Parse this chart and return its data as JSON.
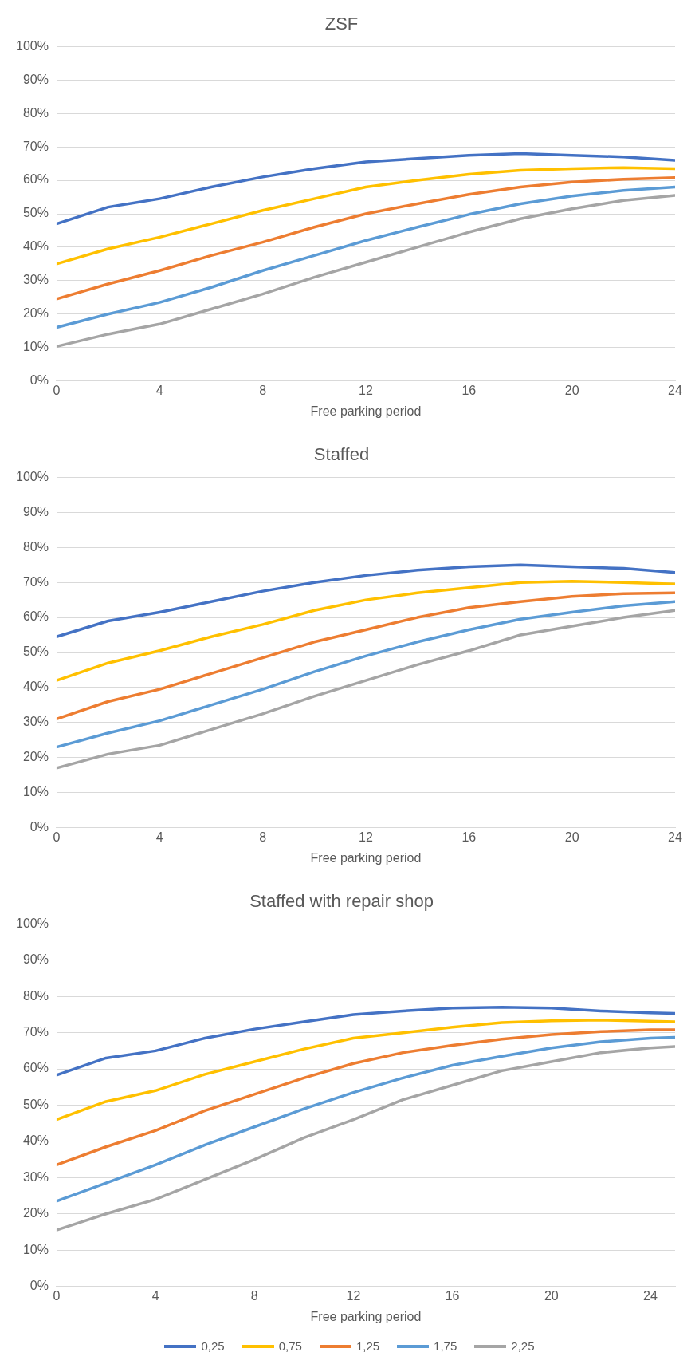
{
  "chart_data": [
    {
      "type": "line",
      "title": "ZSF",
      "xlabel": "Free parking period",
      "x": [
        0,
        2,
        4,
        6,
        8,
        10,
        12,
        14,
        16,
        18,
        20,
        22,
        24
      ],
      "xlim": [
        0,
        24
      ],
      "xticks": [
        0,
        4,
        8,
        12,
        16,
        20,
        24
      ],
      "ylim": [
        0,
        100
      ],
      "yticks": [
        {
          "value": 0,
          "label": "0%"
        },
        {
          "value": 10,
          "label": "10%"
        },
        {
          "value": 20,
          "label": "20%"
        },
        {
          "value": 30,
          "label": "30%"
        },
        {
          "value": 40,
          "label": "40%"
        },
        {
          "value": 50,
          "label": "50%"
        },
        {
          "value": 60,
          "label": "60%"
        },
        {
          "value": 70,
          "label": "70%"
        },
        {
          "value": 80,
          "label": "80%"
        },
        {
          "value": 90,
          "label": "90%"
        },
        {
          "value": 100,
          "label": "100%"
        }
      ],
      "grid": "y",
      "legend": false,
      "marker": "none",
      "line_style": "solid",
      "series": [
        {
          "color": "#4472c4",
          "values": [
            47,
            52,
            54.5,
            58,
            61,
            63.5,
            65.5,
            66.5,
            67.5,
            68,
            67.5,
            67,
            66
          ]
        },
        {
          "color": "#ffc000",
          "values": [
            35,
            39.5,
            43,
            47,
            51,
            54.5,
            58,
            60,
            61.8,
            63,
            63.5,
            63.8,
            63.5
          ]
        },
        {
          "color": "#ed7d31",
          "values": [
            24.5,
            29,
            33,
            37.5,
            41.5,
            46,
            50,
            53,
            55.8,
            58,
            59.5,
            60.3,
            60.8
          ]
        },
        {
          "color": "#5b9bd5",
          "values": [
            16,
            20,
            23.5,
            28,
            33,
            37.5,
            42,
            46,
            49.8,
            53,
            55.3,
            57,
            58
          ]
        },
        {
          "color": "#a5a5a5",
          "values": [
            10.3,
            14,
            17,
            21.5,
            26,
            31,
            35.5,
            40,
            44.5,
            48.5,
            51.5,
            54,
            55.5
          ]
        }
      ]
    },
    {
      "type": "line",
      "title": "Staffed",
      "xlabel": "Free parking period",
      "x": [
        0,
        2,
        4,
        6,
        8,
        10,
        12,
        14,
        16,
        18,
        20,
        22,
        24
      ],
      "xlim": [
        0,
        24
      ],
      "xticks": [
        0,
        4,
        8,
        12,
        16,
        20,
        24
      ],
      "ylim": [
        0,
        100
      ],
      "yticks": [
        {
          "value": 0,
          "label": "0%"
        },
        {
          "value": 10,
          "label": "10%"
        },
        {
          "value": 20,
          "label": "20%"
        },
        {
          "value": 30,
          "label": "30%"
        },
        {
          "value": 40,
          "label": "40%"
        },
        {
          "value": 50,
          "label": "50%"
        },
        {
          "value": 60,
          "label": "60%"
        },
        {
          "value": 70,
          "label": "70%"
        },
        {
          "value": 80,
          "label": "80%"
        },
        {
          "value": 90,
          "label": "90%"
        },
        {
          "value": 100,
          "label": "100%"
        }
      ],
      "grid": "y",
      "legend": false,
      "marker": "none",
      "line_style": "solid",
      "series": [
        {
          "color": "#4472c4",
          "values": [
            54.5,
            59,
            61.5,
            64.5,
            67.5,
            70,
            72,
            73.5,
            74.5,
            75,
            74.5,
            74,
            72.8
          ]
        },
        {
          "color": "#ffc000",
          "values": [
            42,
            47,
            50.5,
            54.5,
            58,
            62,
            65,
            67,
            68.5,
            70,
            70.3,
            70,
            69.5
          ]
        },
        {
          "color": "#ed7d31",
          "values": [
            31,
            36,
            39.5,
            44,
            48.5,
            53,
            56.5,
            60,
            62.8,
            64.5,
            66,
            66.8,
            67
          ]
        },
        {
          "color": "#5b9bd5",
          "values": [
            23,
            27,
            30.5,
            35,
            39.5,
            44.5,
            49,
            53,
            56.5,
            59.5,
            61.5,
            63.3,
            64.5
          ]
        },
        {
          "color": "#a5a5a5",
          "values": [
            17,
            21,
            23.5,
            28,
            32.5,
            37.5,
            42,
            46.5,
            50.5,
            55,
            57.5,
            60,
            62
          ]
        }
      ]
    },
    {
      "type": "line",
      "title": "Staffed with repair shop",
      "xlabel": "Free parking period",
      "x": [
        0,
        2,
        4,
        6,
        8,
        10,
        12,
        14,
        16,
        18,
        20,
        22,
        24,
        25
      ],
      "xlim": [
        0,
        25
      ],
      "xticks": [
        0,
        4,
        8,
        12,
        16,
        20,
        24
      ],
      "ylim": [
        0,
        100
      ],
      "yticks": [
        {
          "value": 0,
          "label": "0%"
        },
        {
          "value": 10,
          "label": "10%"
        },
        {
          "value": 20,
          "label": "20%"
        },
        {
          "value": 30,
          "label": "30%"
        },
        {
          "value": 40,
          "label": "40%"
        },
        {
          "value": 50,
          "label": "50%"
        },
        {
          "value": 60,
          "label": "60%"
        },
        {
          "value": 70,
          "label": "70%"
        },
        {
          "value": 80,
          "label": "80%"
        },
        {
          "value": 90,
          "label": "90%"
        },
        {
          "value": 100,
          "label": "100%"
        }
      ],
      "grid": "y",
      "legend": "bottom",
      "marker": "none",
      "line_style": "solid",
      "series": [
        {
          "name": "0,25",
          "color": "#4472c4",
          "values": [
            58.3,
            63,
            65,
            68.5,
            71,
            73,
            75,
            76,
            76.8,
            77,
            76.8,
            76,
            75.5,
            75.3
          ]
        },
        {
          "name": "0,75",
          "color": "#ffc000",
          "values": [
            46,
            51,
            54,
            58.5,
            62,
            65.5,
            68.5,
            70,
            71.5,
            72.8,
            73.3,
            73.5,
            73.2,
            73
          ]
        },
        {
          "name": "1,25",
          "color": "#ed7d31",
          "values": [
            33.5,
            38.5,
            43,
            48.5,
            53,
            57.5,
            61.5,
            64.5,
            66.5,
            68.2,
            69.5,
            70.3,
            70.8,
            70.8
          ]
        },
        {
          "name": "1,75",
          "color": "#5b9bd5",
          "values": [
            23.5,
            28.5,
            33.5,
            39,
            44,
            49,
            53.5,
            57.5,
            61,
            63.5,
            65.8,
            67.5,
            68.5,
            68.7
          ]
        },
        {
          "name": "2,25",
          "color": "#a5a5a5",
          "values": [
            15.5,
            20,
            24,
            29.5,
            35,
            41,
            46,
            51.5,
            55.5,
            59.5,
            62,
            64.5,
            65.8,
            66.2
          ]
        }
      ]
    }
  ]
}
